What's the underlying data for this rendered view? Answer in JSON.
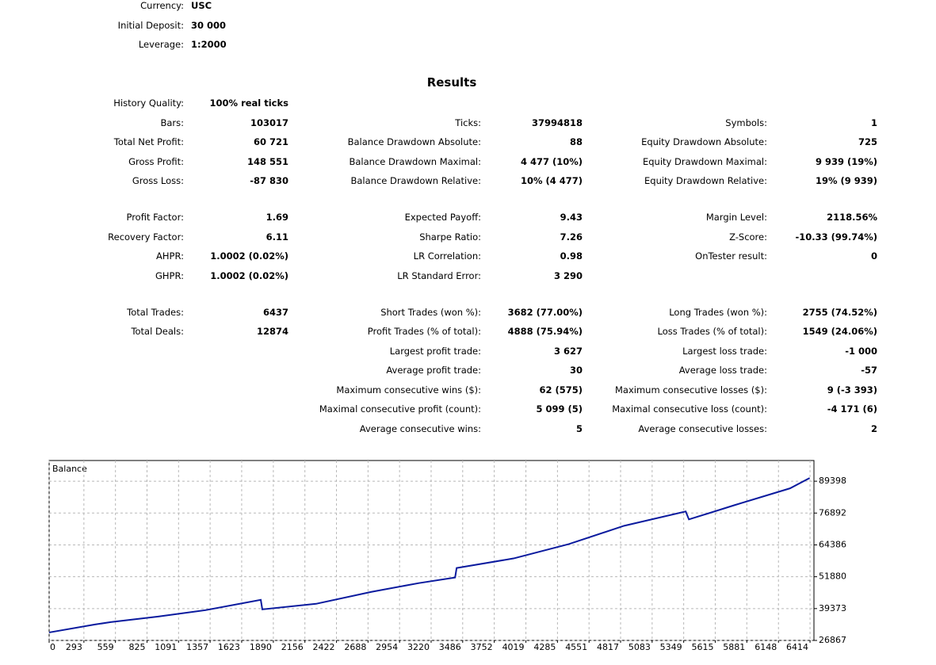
{
  "settings": [
    {
      "label": "Currency:",
      "value": "USC"
    },
    {
      "label": "Initial Deposit:",
      "value": "30 000"
    },
    {
      "label": "Leverage:",
      "value": "1:2000"
    }
  ],
  "results": {
    "title": "Results",
    "groups": [
      [
        [
          {
            "label": "History Quality:",
            "value": "100% real ticks"
          },
          null,
          null
        ],
        [
          {
            "label": "Bars:",
            "value": "103017"
          },
          {
            "label": "Ticks:",
            "value": "37994818"
          },
          {
            "label": "Symbols:",
            "value": "1"
          }
        ],
        [
          {
            "label": "Total Net Profit:",
            "value": "60 721"
          },
          {
            "label": "Balance Drawdown Absolute:",
            "value": "88"
          },
          {
            "label": "Equity Drawdown Absolute:",
            "value": "725"
          }
        ],
        [
          {
            "label": "Gross Profit:",
            "value": "148 551"
          },
          {
            "label": "Balance Drawdown Maximal:",
            "value": "4 477 (10%)"
          },
          {
            "label": "Equity Drawdown Maximal:",
            "value": "9 939 (19%)"
          }
        ],
        [
          {
            "label": "Gross Loss:",
            "value": "-87 830"
          },
          {
            "label": "Balance Drawdown Relative:",
            "value": "10% (4 477)"
          },
          {
            "label": "Equity Drawdown Relative:",
            "value": "19% (9 939)"
          }
        ]
      ],
      [
        [
          {
            "label": "Profit Factor:",
            "value": "1.69"
          },
          {
            "label": "Expected Payoff:",
            "value": "9.43"
          },
          {
            "label": "Margin Level:",
            "value": "2118.56%"
          }
        ],
        [
          {
            "label": "Recovery Factor:",
            "value": "6.11"
          },
          {
            "label": "Sharpe Ratio:",
            "value": "7.26"
          },
          {
            "label": "Z-Score:",
            "value": "-10.33 (99.74%)"
          }
        ],
        [
          {
            "label": "AHPR:",
            "value": "1.0002 (0.02%)"
          },
          {
            "label": "LR Correlation:",
            "value": "0.98"
          },
          {
            "label": "OnTester result:",
            "value": "0"
          }
        ],
        [
          {
            "label": "GHPR:",
            "value": "1.0002 (0.02%)"
          },
          {
            "label": "LR Standard Error:",
            "value": "3 290"
          },
          null
        ]
      ],
      [
        [
          {
            "label": "Total Trades:",
            "value": "6437"
          },
          {
            "label": "Short Trades (won %):",
            "value": "3682 (77.00%)"
          },
          {
            "label": "Long Trades (won %):",
            "value": "2755 (74.52%)"
          }
        ],
        [
          {
            "label": "Total Deals:",
            "value": "12874"
          },
          {
            "label": "Profit Trades (% of total):",
            "value": "4888 (75.94%)"
          },
          {
            "label": "Loss Trades (% of total):",
            "value": "1549 (24.06%)"
          }
        ],
        [
          null,
          {
            "label": "Largest profit trade:",
            "value": "3 627"
          },
          {
            "label": "Largest loss trade:",
            "value": "-1 000"
          }
        ],
        [
          null,
          {
            "label": "Average profit trade:",
            "value": "30"
          },
          {
            "label": "Average loss trade:",
            "value": "-57"
          }
        ],
        [
          null,
          {
            "label": "Maximum consecutive wins ($):",
            "value": "62 (575)"
          },
          {
            "label": "Maximum consecutive losses ($):",
            "value": "9 (-3 393)"
          }
        ],
        [
          null,
          {
            "label": "Maximal consecutive profit (count):",
            "value": "5 099 (5)"
          },
          {
            "label": "Maximal consecutive loss (count):",
            "value": "-4 171 (6)"
          }
        ],
        [
          null,
          {
            "label": "Average consecutive wins:",
            "value": "5"
          },
          {
            "label": "Average consecutive losses:",
            "value": "2"
          }
        ]
      ]
    ]
  },
  "chart_data": {
    "type": "line",
    "title": "Balance",
    "x": [
      0,
      386,
      519,
      919,
      1318,
      1784,
      1797,
      2250,
      2716,
      3116,
      3422,
      3435,
      3915,
      4381,
      4847,
      5366,
      5393,
      5779,
      6245,
      6411
    ],
    "series": [
      {
        "name": "Balance",
        "color": "#0a1a9e",
        "values": [
          30000,
          33120,
          34060,
          36250,
          38750,
          42810,
          39060,
          41250,
          45940,
          49380,
          51570,
          55320,
          59070,
          64700,
          71890,
          77520,
          74390,
          80020,
          86590,
          90650
        ]
      }
    ],
    "xlim": [
      0,
      6447
    ],
    "xticks": [
      0,
      293,
      559,
      825,
      1091,
      1357,
      1623,
      1890,
      2156,
      2422,
      2688,
      2954,
      3220,
      3486,
      3752,
      4019,
      4285,
      4551,
      4817,
      5083,
      5349,
      5615,
      5881,
      6148,
      6414
    ],
    "ylim": [
      26867,
      97526
    ],
    "yticks": [
      26867,
      39373,
      51880,
      64386,
      76892,
      89398
    ],
    "grid": true
  }
}
